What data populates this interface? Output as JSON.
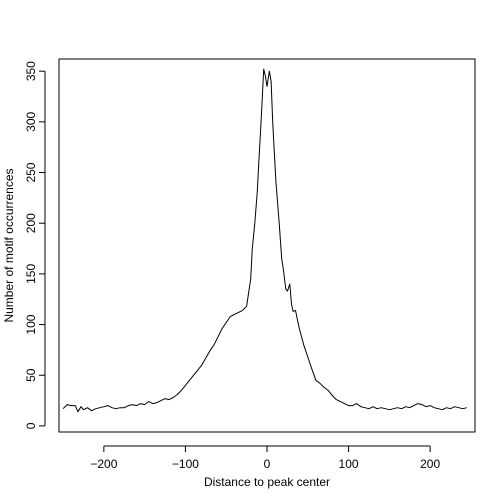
{
  "chart_data": {
    "type": "line",
    "title": "",
    "xlabel": "Distance to peak center",
    "ylabel": "Number of motif occurrences",
    "xlim": [
      -255,
      255
    ],
    "ylim": [
      -6,
      362
    ],
    "grid": false,
    "legend": "none",
    "line_color": "#000000",
    "x_ticks": [
      -200,
      -100,
      0,
      100,
      200
    ],
    "x_tick_labels": [
      "−200",
      "−100",
      "0",
      "100",
      "200"
    ],
    "y_ticks": [
      0,
      50,
      100,
      150,
      200,
      250,
      300,
      350
    ],
    "y_tick_labels": [
      "0",
      "50",
      "100",
      "150",
      "200",
      "250",
      "300",
      "350"
    ],
    "series": [
      {
        "x": [
          -250,
          -245,
          -240,
          -235,
          -232,
          -228,
          -225,
          -220,
          -215,
          -210,
          -205,
          -200,
          -195,
          -190,
          -185,
          -180,
          -175,
          -170,
          -165,
          -160,
          -155,
          -150,
          -145,
          -140,
          -135,
          -130,
          -125,
          -120,
          -115,
          -110,
          -105,
          -100,
          -95,
          -90,
          -85,
          -80,
          -75,
          -70,
          -65,
          -60,
          -55,
          -50,
          -45,
          -40,
          -35,
          -30,
          -25,
          -20,
          -18,
          -15,
          -12,
          -10,
          -8,
          -6,
          -4,
          -2,
          0,
          2,
          3,
          5,
          7,
          9,
          11,
          13,
          15,
          18,
          20,
          23,
          25,
          28,
          30,
          32,
          35,
          38,
          40,
          45,
          50,
          55,
          60,
          65,
          70,
          75,
          80,
          85,
          90,
          95,
          100,
          105,
          110,
          115,
          120,
          125,
          130,
          135,
          140,
          145,
          150,
          155,
          160,
          165,
          170,
          175,
          180,
          185,
          190,
          195,
          200,
          205,
          210,
          215,
          220,
          225,
          230,
          235,
          240,
          245
        ],
        "y": [
          17,
          21,
          20,
          20,
          14,
          19,
          16,
          18,
          15,
          17,
          18,
          19,
          20,
          18,
          17,
          18,
          18,
          20,
          21,
          20,
          22,
          21,
          24,
          22,
          23,
          25,
          27,
          26,
          28,
          31,
          35,
          40,
          45,
          50,
          55,
          60,
          67,
          74,
          80,
          88,
          96,
          102,
          108,
          110,
          112,
          114,
          118,
          145,
          175,
          200,
          230,
          260,
          290,
          320,
          352,
          345,
          335,
          345,
          350,
          340,
          300,
          270,
          240,
          220,
          200,
          165,
          155,
          135,
          133,
          140,
          120,
          113,
          114,
          102,
          95,
          80,
          68,
          56,
          45,
          42,
          38,
          35,
          30,
          26,
          24,
          22,
          20,
          20,
          22,
          19,
          18,
          17,
          19,
          17,
          18,
          17,
          16,
          17,
          18,
          17,
          19,
          18,
          20,
          22,
          21,
          19,
          20,
          18,
          17,
          16,
          18,
          17,
          19,
          18,
          17,
          18
        ]
      }
    ]
  }
}
